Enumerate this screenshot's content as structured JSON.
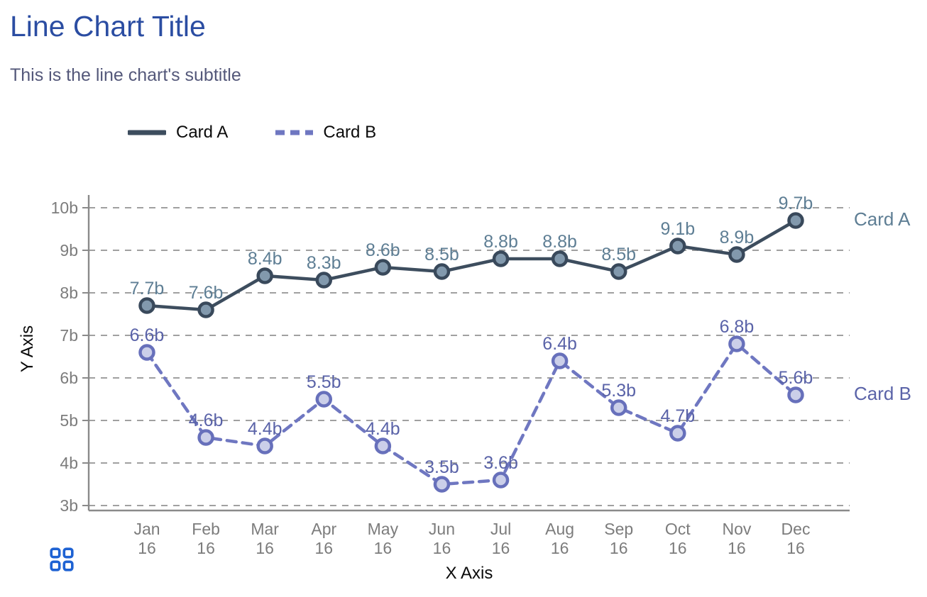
{
  "header": {
    "title": "Line Chart Title",
    "subtitle": "This is the line chart's subtitle"
  },
  "chart_data": {
    "type": "line",
    "title": "Line Chart Title",
    "subtitle": "This is the line chart's subtitle",
    "xlabel": "X Axis",
    "ylabel": "Y Axis",
    "x_tick_line1": [
      "Jan",
      "Feb",
      "Mar",
      "Apr",
      "May",
      "Jun",
      "Jul",
      "Aug",
      "Sep",
      "Oct",
      "Nov",
      "Dec"
    ],
    "x_tick_line2": [
      "16",
      "16",
      "16",
      "16",
      "16",
      "16",
      "16",
      "16",
      "16",
      "16",
      "16",
      "16"
    ],
    "y_ticks": [
      "10b",
      "9b",
      "8b",
      "7b",
      "6b",
      "5b",
      "4b",
      "3b"
    ],
    "ylim": [
      3,
      10
    ],
    "value_suffix": "b",
    "grid": "horizontal dashed",
    "legend_position": "top",
    "series": [
      {
        "name": "Card A",
        "style": "solid",
        "values": [
          7.7,
          7.6,
          8.4,
          8.3,
          8.6,
          8.5,
          8.8,
          8.8,
          8.5,
          9.1,
          8.9,
          9.7
        ],
        "labels": [
          "7.7b",
          "7.6b",
          "8.4b",
          "8.3b",
          "8.6b",
          "8.5b",
          "8.8b",
          "8.8b",
          "8.5b",
          "9.1b",
          "8.9b",
          "9.7b"
        ],
        "line_color": "#3d4d5e",
        "marker_stroke": "#39495b",
        "marker_fill": "#8299ad",
        "label_color": "#5e7e94"
      },
      {
        "name": "Card B",
        "style": "dashed",
        "values": [
          6.6,
          4.6,
          4.4,
          5.5,
          4.4,
          3.5,
          3.6,
          6.4,
          5.3,
          4.7,
          6.8,
          5.6
        ],
        "labels": [
          "6.6b",
          "4.6b",
          "4.4b",
          "5.5b",
          "4.4b",
          "3.5b",
          "3.6b",
          "6.4b",
          "5.3b",
          "4.7b",
          "6.8b",
          "5.6b"
        ],
        "line_color": "#6f77c1",
        "marker_stroke": "#6770bb",
        "marker_fill": "#cbcfe9",
        "label_color": "#5a63a8"
      }
    ],
    "colors": {
      "title": "#2b4da2",
      "subtitle": "#54587a",
      "gridline": "#a0a0a0",
      "axis_line": "#8a8a8a",
      "tick_text": "#7c7c7c",
      "axis_title_text": "#0a0a0a",
      "grid_icon": "#1e62d3"
    }
  }
}
